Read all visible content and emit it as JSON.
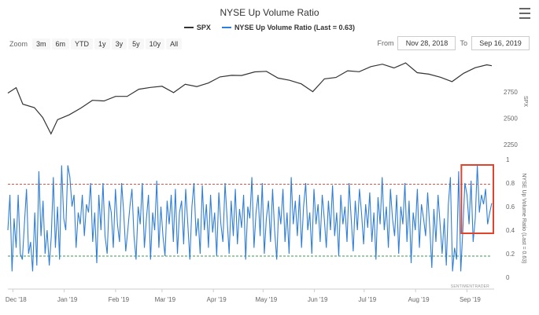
{
  "title": "NYSE Up Volume Ratio",
  "legend": {
    "spx": "SPX",
    "ratio": "NYSE Up Volume Ratio (Last = 0.63)"
  },
  "zoom": {
    "label": "Zoom",
    "buttons": [
      "3m",
      "6m",
      "YTD",
      "1y",
      "3y",
      "5y",
      "10y",
      "All"
    ]
  },
  "range": {
    "from_label": "From",
    "from_value": "Nov 28, 2018",
    "to_label": "To",
    "to_value": "Sep 16, 2019"
  },
  "credit": "SENTIMENTRADER",
  "colors": {
    "spx": "#333333",
    "ratio": "#2f7ed8",
    "upper_line": "#d9534f",
    "lower_line": "#3a9a4a",
    "highlight": "#e0442c"
  },
  "chart_data": [
    {
      "type": "line",
      "name": "SPX",
      "y_axis_label": "SPX",
      "y_ticks": [
        2250,
        2500,
        2750
      ],
      "ylim": [
        2220,
        3100
      ],
      "x": [
        "2018-11-28",
        "2018-12-03",
        "2018-12-07",
        "2018-12-14",
        "2018-12-19",
        "2018-12-24",
        "2018-12-28",
        "2019-01-04",
        "2019-01-11",
        "2019-01-18",
        "2019-01-25",
        "2019-02-01",
        "2019-02-08",
        "2019-02-15",
        "2019-02-22",
        "2019-03-01",
        "2019-03-08",
        "2019-03-15",
        "2019-03-22",
        "2019-03-29",
        "2019-04-05",
        "2019-04-12",
        "2019-04-18",
        "2019-04-26",
        "2019-05-03",
        "2019-05-10",
        "2019-05-17",
        "2019-05-24",
        "2019-05-31",
        "2019-06-07",
        "2019-06-14",
        "2019-06-21",
        "2019-06-28",
        "2019-07-05",
        "2019-07-12",
        "2019-07-19",
        "2019-07-26",
        "2019-08-02",
        "2019-08-09",
        "2019-08-16",
        "2019-08-23",
        "2019-08-30",
        "2019-09-06",
        "2019-09-13",
        "2019-09-16"
      ],
      "values": [
        2738,
        2790,
        2633,
        2600,
        2507,
        2351,
        2486,
        2532,
        2596,
        2670,
        2664,
        2707,
        2707,
        2775,
        2792,
        2803,
        2743,
        2822,
        2800,
        2834,
        2892,
        2907,
        2905,
        2940,
        2945,
        2881,
        2860,
        2826,
        2752,
        2873,
        2887,
        2950,
        2941,
        2990,
        3013,
        2977,
        3025,
        2932,
        2918,
        2889,
        2847,
        2926,
        2979,
        3007,
        2998
      ]
    },
    {
      "type": "line",
      "name": "NYSE Up Volume Ratio (Last = 0.63)",
      "y_axis_label": "NYSE Up Volume Ratio (Last = 0.63)",
      "y_ticks": [
        0,
        0.2,
        0.4,
        0.6,
        0.8,
        1
      ],
      "ylim": [
        0,
        1
      ],
      "x_ticks": [
        "Dec '18",
        "Jan '19",
        "Feb '19",
        "Mar '19",
        "Apr '19",
        "May '19",
        "Jun '19",
        "Jul '19",
        "Aug '19",
        "Sep '19"
      ],
      "reference_lines": [
        0.79,
        0.18
      ],
      "values": [
        0.4,
        0.7,
        0.05,
        0.5,
        0.25,
        0.7,
        0.2,
        0.15,
        0.45,
        0.75,
        0.2,
        0.3,
        0.05,
        0.55,
        0.1,
        0.9,
        0.35,
        0.65,
        0.2,
        0.4,
        0.1,
        0.35,
        0.85,
        0.25,
        0.6,
        0.15,
        0.95,
        0.5,
        0.4,
        0.95,
        0.85,
        0.6,
        0.7,
        0.25,
        0.55,
        0.45,
        0.7,
        0.35,
        0.62,
        0.55,
        0.8,
        0.3,
        0.55,
        0.12,
        0.7,
        0.4,
        0.8,
        0.35,
        0.2,
        0.65,
        0.55,
        0.25,
        0.75,
        0.45,
        0.3,
        0.8,
        0.55,
        0.22,
        0.4,
        0.6,
        0.75,
        0.35,
        0.15,
        0.6,
        0.45,
        0.8,
        0.25,
        0.5,
        0.7,
        0.15,
        0.55,
        0.4,
        0.82,
        0.25,
        0.6,
        0.35,
        0.18,
        0.65,
        0.45,
        0.7,
        0.3,
        0.75,
        0.2,
        0.55,
        0.65,
        0.28,
        0.75,
        0.45,
        0.15,
        0.6,
        0.8,
        0.35,
        0.5,
        0.2,
        0.78,
        0.4,
        0.62,
        0.25,
        0.7,
        0.38,
        0.55,
        0.18,
        0.72,
        0.45,
        0.3,
        0.8,
        0.5,
        0.2,
        0.65,
        0.35,
        0.75,
        0.28,
        0.58,
        0.42,
        0.7,
        0.15,
        0.6,
        0.5,
        0.85,
        0.25,
        0.55,
        0.7,
        0.35,
        0.8,
        0.2,
        0.5,
        0.65,
        0.3,
        0.75,
        0.4,
        0.15,
        0.6,
        0.45,
        0.75,
        0.3,
        0.55,
        0.2,
        0.85,
        0.45,
        0.65,
        0.35,
        0.7,
        0.25,
        0.6,
        0.8,
        0.4,
        0.55,
        0.2,
        0.75,
        0.45,
        0.62,
        0.3,
        0.7,
        0.5,
        0.25,
        0.65,
        0.4,
        0.78,
        0.35,
        0.55,
        0.18,
        0.7,
        0.45,
        0.6,
        0.3,
        0.8,
        0.5,
        0.22,
        0.65,
        0.4,
        0.75,
        0.55,
        0.28,
        0.62,
        0.42,
        0.72,
        0.3,
        0.55,
        0.15,
        0.68,
        0.45,
        0.85,
        0.4,
        0.6,
        0.25,
        0.75,
        0.5,
        0.35,
        0.7,
        0.2,
        0.6,
        0.45,
        0.8,
        0.3,
        0.65,
        0.12,
        0.55,
        0.4,
        0.75,
        0.25,
        0.62,
        0.5,
        0.35,
        0.72,
        0.42,
        0.08,
        0.58,
        0.3,
        0.7,
        0.45,
        0.2,
        0.5,
        0.1,
        0.62,
        0.85,
        0.05,
        0.25,
        0.15,
        0.9,
        0.05,
        0.4,
        0.8,
        0.7,
        0.45,
        0.82,
        0.3,
        0.5,
        0.95,
        0.55,
        0.7,
        0.62,
        0.75,
        0.45,
        0.55,
        0.63
      ]
    }
  ]
}
